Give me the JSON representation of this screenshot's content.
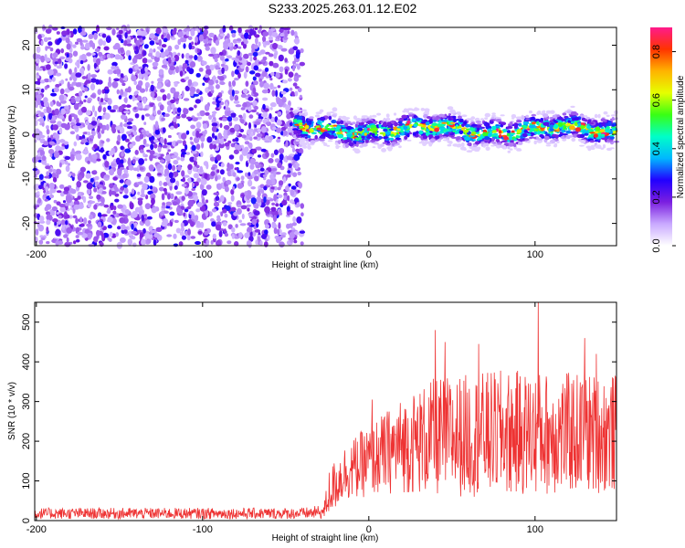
{
  "title": "S233.2025.263.01.12.E02",
  "chart_data": [
    {
      "type": "heatmap",
      "xlabel": "Height of straight line (km)",
      "ylabel": "Frequency (Hz)",
      "xlim": [
        -201,
        149
      ],
      "ylim": [
        -25,
        24
      ],
      "xticks": [
        -200,
        -100,
        0,
        100
      ],
      "xtick_labels": [
        "-200",
        "-100",
        "0",
        "100"
      ],
      "yticks": [
        -20,
        -10,
        0,
        10,
        20
      ],
      "ytick_labels": [
        "-20",
        "-10",
        "0",
        "10",
        "20"
      ],
      "noise_region_x": [
        -201,
        -40
      ],
      "signal_band_center_hz": 1,
      "signal_band_halfwidth_hz": 3,
      "colorbar": {
        "label": "Normalized spectral amplitude",
        "range": [
          0,
          0.9
        ],
        "ticks": [
          0,
          0.2,
          0.4,
          0.6,
          0.8
        ],
        "tick_labels": [
          "0.0",
          "0.2",
          "0.4",
          "0.6",
          "0.8"
        ],
        "colors": [
          "#ffffff",
          "#c9a9ff",
          "#7b1fe0",
          "#2200ff",
          "#00b7ff",
          "#00ffc8",
          "#39ff14",
          "#e6ff00",
          "#ffb300",
          "#ff3300",
          "#ff1a8c"
        ]
      }
    },
    {
      "type": "line",
      "xlabel": "Height of straight line (km)",
      "ylabel": "SNR (10 * v/v)",
      "xlim": [
        -201,
        149
      ],
      "ylim": [
        0,
        550
      ],
      "xticks": [
        -200,
        -100,
        0,
        100
      ],
      "xtick_labels": [
        "-200",
        "-100",
        "0",
        "100"
      ],
      "yticks": [
        0,
        100,
        200,
        300,
        400,
        500
      ],
      "ytick_labels": [
        "0",
        "100",
        "200",
        "300",
        "400",
        "500"
      ],
      "color": "#ee3333",
      "trend": [
        {
          "x": -201,
          "base": 18,
          "amp": 14
        },
        {
          "x": -40,
          "base": 18,
          "amp": 14
        },
        {
          "x": -27,
          "base": 22,
          "amp": 18
        },
        {
          "x": -24,
          "base": 70,
          "amp": 60
        },
        {
          "x": -15,
          "base": 120,
          "amp": 70
        },
        {
          "x": 0,
          "base": 150,
          "amp": 90
        },
        {
          "x": 20,
          "base": 190,
          "amp": 120
        },
        {
          "x": 40,
          "base": 210,
          "amp": 150
        },
        {
          "x": 80,
          "base": 220,
          "amp": 160
        },
        {
          "x": 149,
          "base": 220,
          "amp": 150
        }
      ],
      "peaks": [
        {
          "x": 2,
          "y": 305
        },
        {
          "x": 40,
          "y": 480
        },
        {
          "x": 46,
          "y": 450
        },
        {
          "x": 66,
          "y": 445
        },
        {
          "x": 102,
          "y": 550
        },
        {
          "x": 130,
          "y": 460
        },
        {
          "x": 137,
          "y": 420
        }
      ]
    }
  ]
}
